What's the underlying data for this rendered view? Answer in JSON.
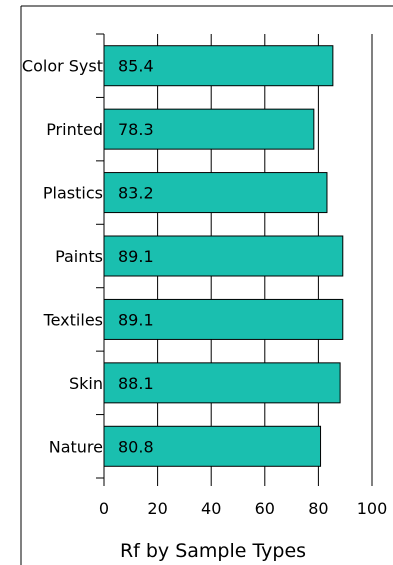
{
  "chart_data": {
    "type": "bar",
    "orientation": "horizontal",
    "title": "",
    "xlabel": "Rf by Sample Types",
    "ylabel": "",
    "categories": [
      "Color Syst",
      "Printed",
      "Plastics",
      "Paints",
      "Textiles",
      "Skin",
      "Nature"
    ],
    "values": [
      85.4,
      78.3,
      83.2,
      89.1,
      89.1,
      88.1,
      80.8
    ],
    "data_labels": [
      "85.4",
      "78.3",
      "83.2",
      "89.1",
      "89.1",
      "88.1",
      "80.8"
    ],
    "xlim": [
      0,
      100
    ],
    "x_ticks": [
      0,
      20,
      40,
      60,
      80,
      100
    ],
    "x_tick_labels": [
      "0",
      "20",
      "40",
      "60",
      "80",
      "100"
    ],
    "grid": true,
    "bar_color": "#1abfaf",
    "bar_edge_color": "#000000"
  }
}
